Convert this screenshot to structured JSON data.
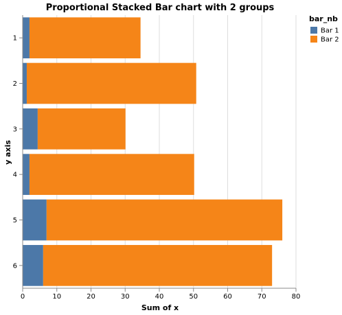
{
  "chart_data": {
    "type": "bar",
    "orientation": "horizontal",
    "stacked": true,
    "title": "Proportional Stacked Bar chart with 2 groups",
    "xlabel": "Sum of x",
    "ylabel": "y axis",
    "xlim": [
      0,
      80
    ],
    "x_ticks": [
      0,
      10,
      20,
      30,
      40,
      50,
      60,
      70,
      80
    ],
    "grid": true,
    "categories": [
      "1",
      "2",
      "3",
      "4",
      "5",
      "6"
    ],
    "series": [
      {
        "name": "Bar 1",
        "color": "#4c78a8",
        "values": [
          2.0,
          1.2,
          4.4,
          2.0,
          7.0,
          6.0
        ]
      },
      {
        "name": "Bar 2",
        "color": "#f58518",
        "values": [
          32.5,
          49.6,
          25.7,
          48.2,
          69.0,
          67.0
        ]
      }
    ],
    "legend": {
      "title": "bar_nb",
      "placement": "top-right",
      "items": [
        "Bar 1",
        "Bar 2"
      ]
    }
  }
}
